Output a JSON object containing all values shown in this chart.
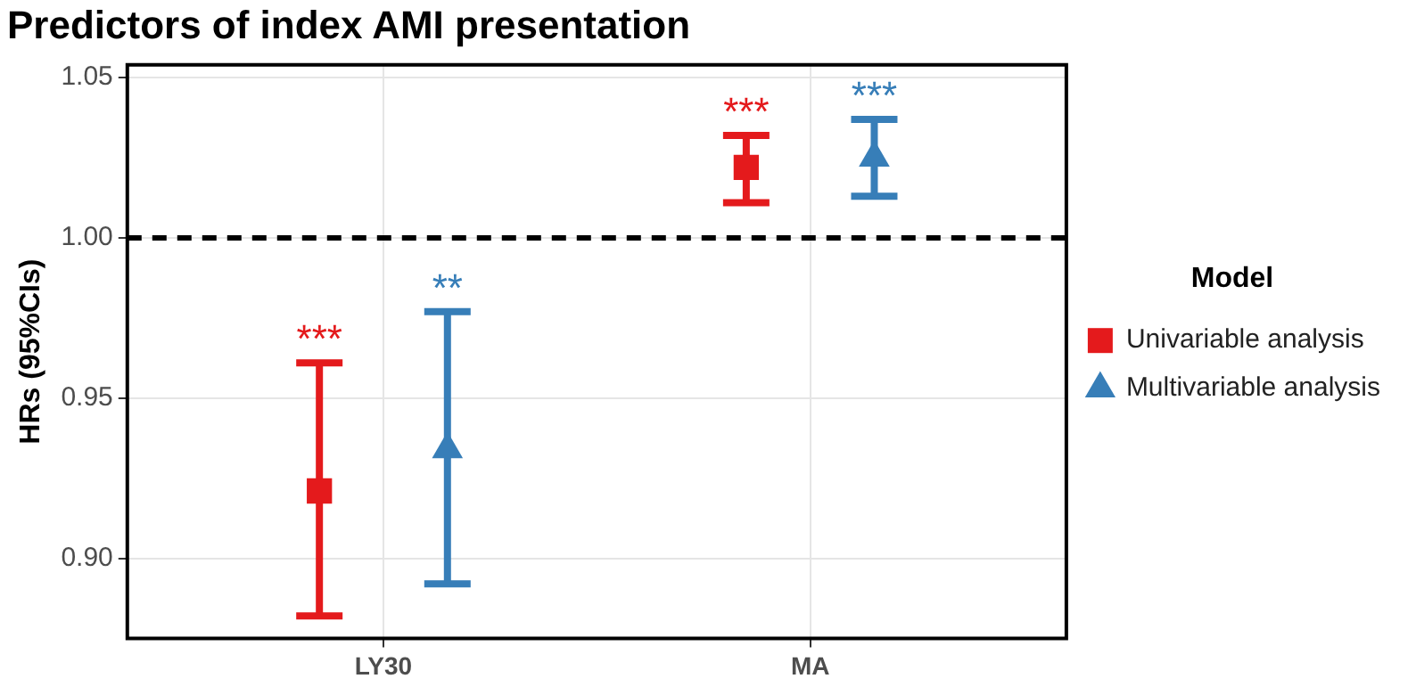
{
  "chart_data": {
    "type": "scatter",
    "title": "Predictors of index AMI presentation",
    "ylabel": "HRs (95%CIs)",
    "legend_title": "Model",
    "categories": [
      "LY30",
      "MA"
    ],
    "series": [
      {
        "name": "Univariable analysis",
        "color": "#e41a1c",
        "marker": "square",
        "values": [
          0.921,
          1.022
        ],
        "errors": [
          [
            0.882,
            0.961
          ],
          [
            1.011,
            1.032
          ]
        ],
        "value_labels": [
          "***",
          "***"
        ]
      },
      {
        "name": "Multivariable analysis",
        "color": "#377eb8",
        "marker": "triangle",
        "values": [
          0.934,
          1.025
        ],
        "errors": [
          [
            0.892,
            0.977
          ],
          [
            1.013,
            1.037
          ]
        ],
        "value_labels": [
          "**",
          "***"
        ]
      }
    ],
    "ylim": [
      0.875,
      1.054
    ],
    "yticks": [
      {
        "value": 0.9,
        "label": "0.90"
      },
      {
        "value": 0.95,
        "label": "0.95"
      },
      {
        "value": 1.0,
        "label": "1.00"
      },
      {
        "value": 1.05,
        "label": "1.05"
      }
    ],
    "ref_lines": [
      {
        "axis": "y",
        "value": 1.0,
        "color": "#000000",
        "line_style": "dashed"
      }
    ],
    "grid": true,
    "legend": "right"
  }
}
